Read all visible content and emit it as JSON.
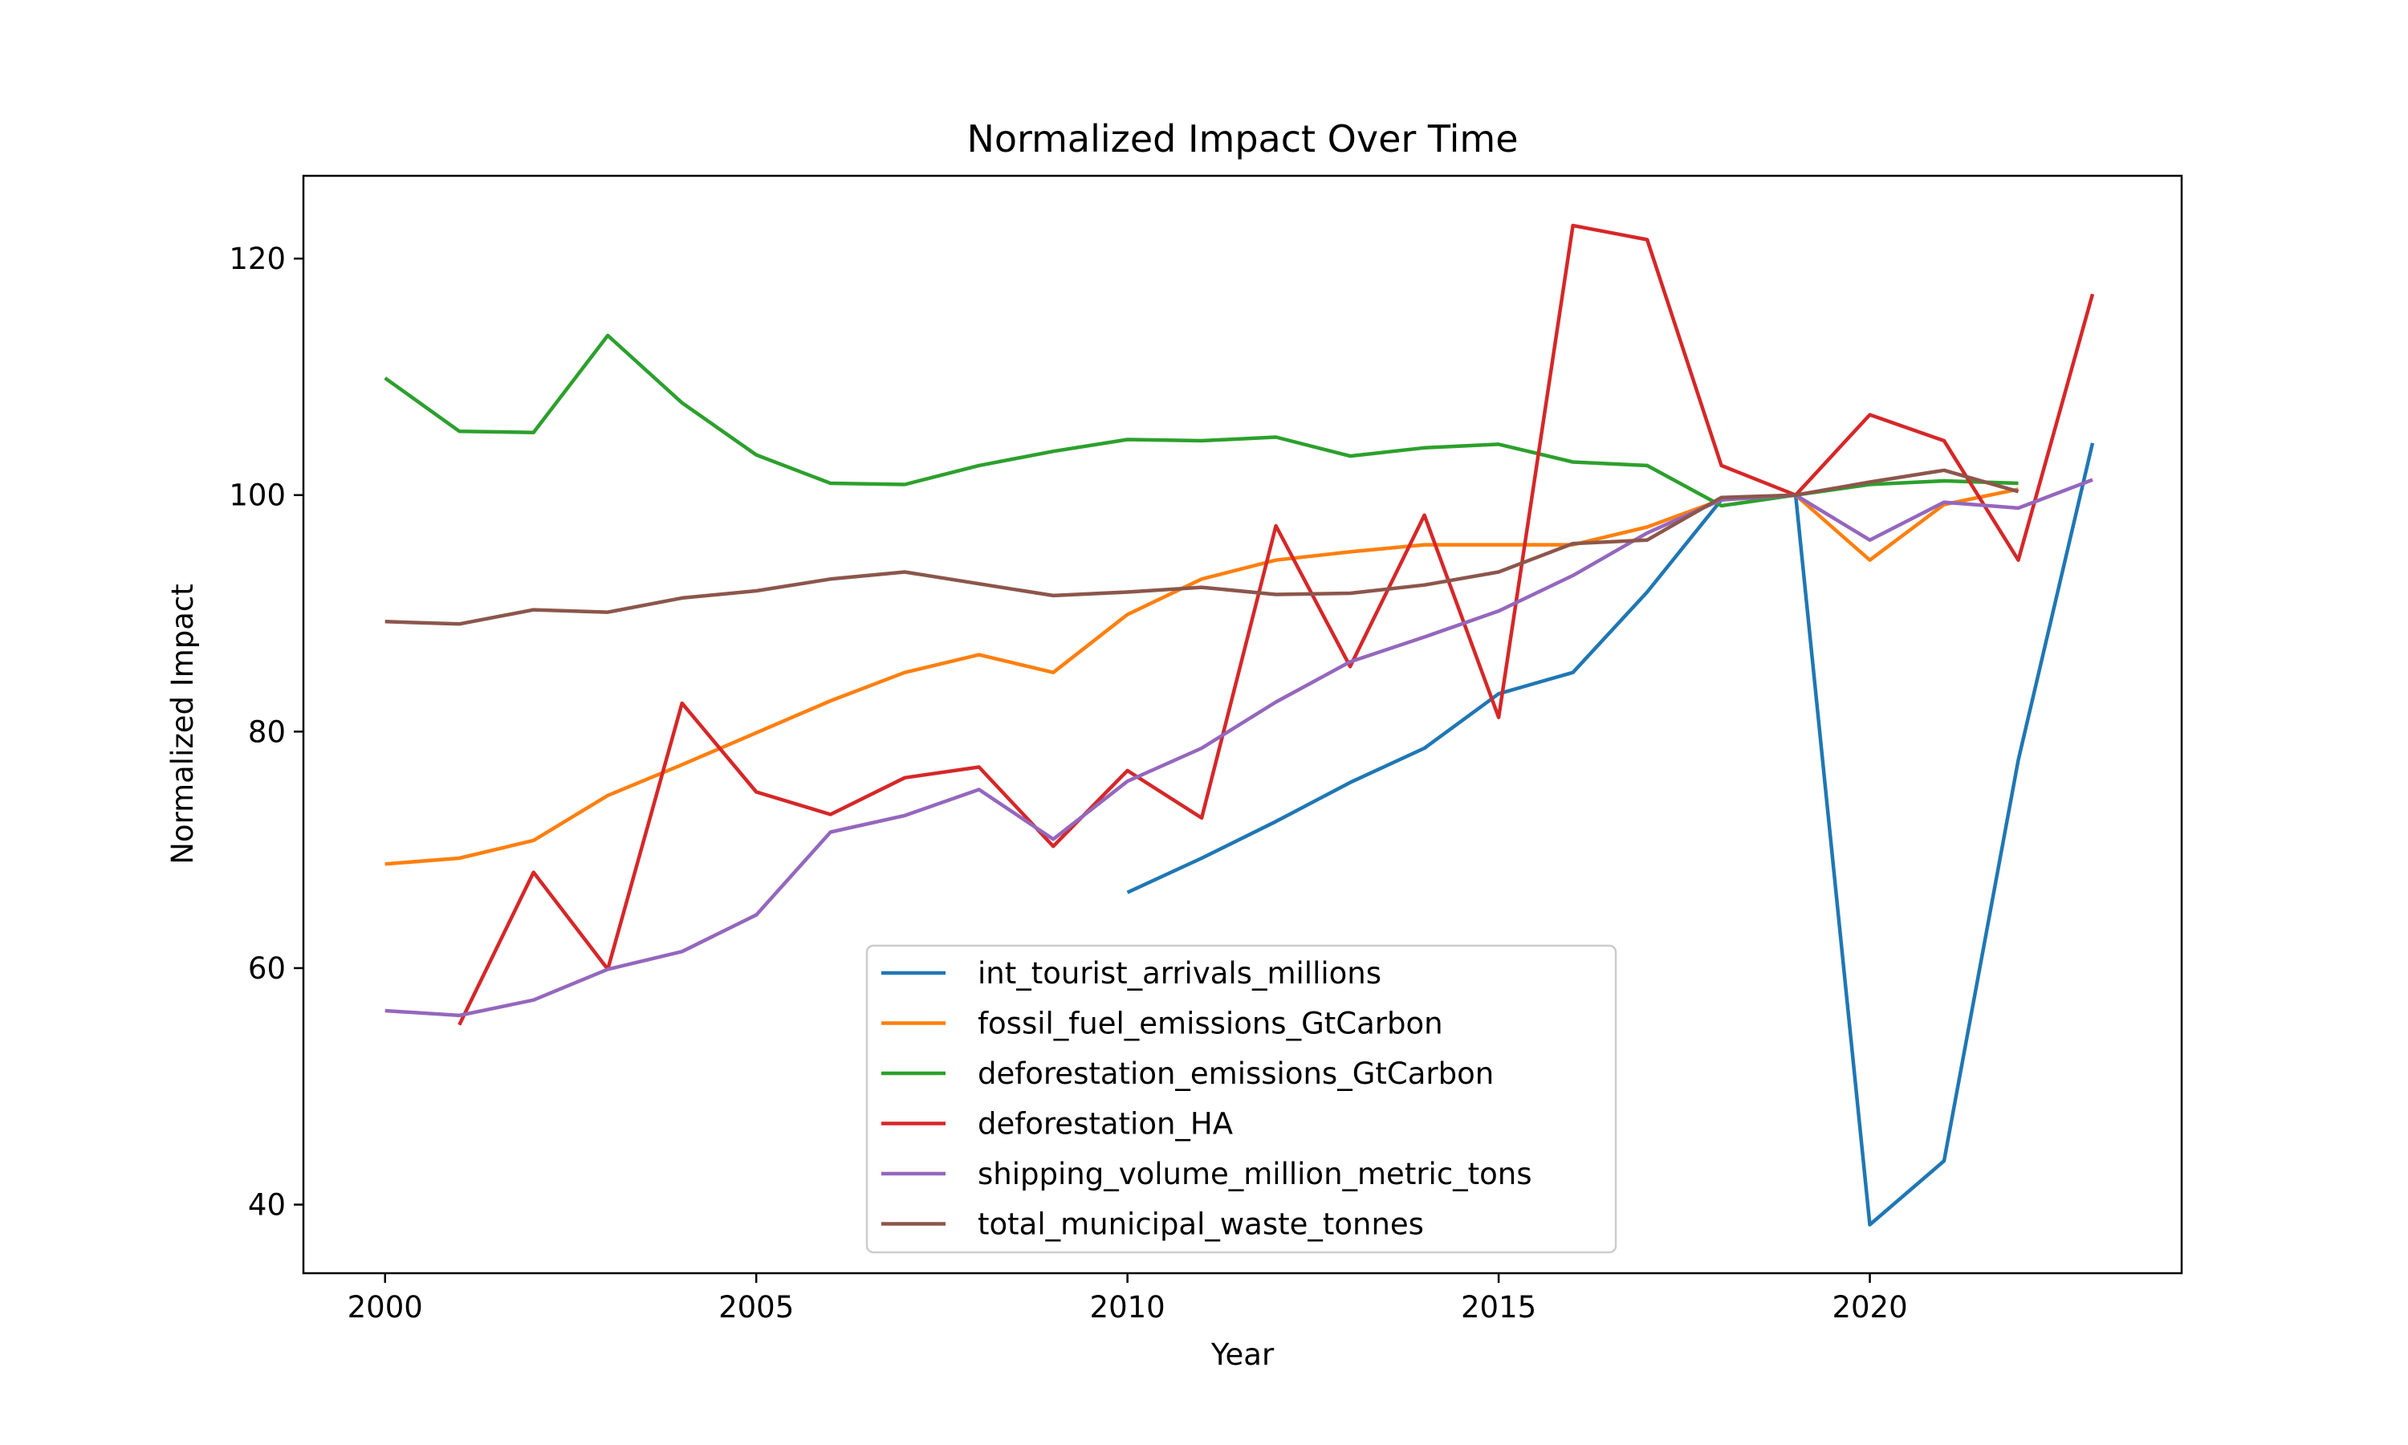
{
  "chart_data": {
    "type": "line",
    "title": "Normalized Impact Over Time",
    "xlabel": "Year",
    "ylabel": "Normalized Impact",
    "xlim": [
      1998.9,
      2024.2
    ],
    "ylim": [
      34.2,
      127.0
    ],
    "xticks": [
      2000,
      2005,
      2010,
      2015,
      2020
    ],
    "yticks": [
      40,
      60,
      80,
      100,
      120
    ],
    "grid": false,
    "legend_position": "lower center",
    "series": [
      {
        "name": "int_tourist_arrivals_millions",
        "color": "#1f77b4",
        "points": [
          [
            2010,
            66.4
          ],
          [
            2011,
            69.3
          ],
          [
            2012,
            72.4
          ],
          [
            2013,
            75.7
          ],
          [
            2014,
            78.6
          ],
          [
            2015,
            83.2
          ],
          [
            2016,
            85.0
          ],
          [
            2017,
            91.8
          ],
          [
            2018,
            99.6
          ],
          [
            2019,
            100.0
          ],
          [
            2020,
            38.3
          ],
          [
            2021,
            43.7
          ],
          [
            2022,
            77.6
          ],
          [
            2023,
            104.4
          ]
        ]
      },
      {
        "name": "fossil_fuel_emissions_GtCarbon",
        "color": "#ff7f0e",
        "points": [
          [
            2000,
            68.8
          ],
          [
            2001,
            69.3
          ],
          [
            2002,
            70.8
          ],
          [
            2003,
            74.6
          ],
          [
            2004,
            77.2
          ],
          [
            2005,
            79.9
          ],
          [
            2006,
            82.6
          ],
          [
            2007,
            85.0
          ],
          [
            2008,
            86.5
          ],
          [
            2009,
            85.0
          ],
          [
            2010,
            89.9
          ],
          [
            2011,
            92.9
          ],
          [
            2012,
            94.5
          ],
          [
            2013,
            95.2
          ],
          [
            2014,
            95.8
          ],
          [
            2015,
            95.8
          ],
          [
            2016,
            95.8
          ],
          [
            2017,
            97.3
          ],
          [
            2018,
            99.6
          ],
          [
            2019,
            100.0
          ],
          [
            2020,
            94.5
          ],
          [
            2021,
            99.2
          ],
          [
            2022,
            100.5
          ]
        ]
      },
      {
        "name": "deforestation_emissions_GtCarbon",
        "color": "#2ca02c",
        "points": [
          [
            2000,
            109.9
          ],
          [
            2001,
            105.4
          ],
          [
            2002,
            105.3
          ],
          [
            2003,
            113.5
          ],
          [
            2004,
            107.8
          ],
          [
            2005,
            103.4
          ],
          [
            2006,
            101.0
          ],
          [
            2007,
            100.9
          ],
          [
            2008,
            102.5
          ],
          [
            2009,
            103.7
          ],
          [
            2010,
            104.7
          ],
          [
            2011,
            104.6
          ],
          [
            2012,
            104.9
          ],
          [
            2013,
            103.3
          ],
          [
            2014,
            104.0
          ],
          [
            2015,
            104.3
          ],
          [
            2016,
            102.8
          ],
          [
            2017,
            102.5
          ],
          [
            2018,
            99.1
          ],
          [
            2019,
            100.0
          ],
          [
            2020,
            100.9
          ],
          [
            2021,
            101.2
          ],
          [
            2022,
            101.0
          ]
        ]
      },
      {
        "name": "deforestation_HA",
        "color": "#d62728",
        "points": [
          [
            2001,
            55.2
          ],
          [
            2002,
            68.1
          ],
          [
            2003,
            59.9
          ],
          [
            2004,
            82.4
          ],
          [
            2005,
            74.9
          ],
          [
            2006,
            73.0
          ],
          [
            2007,
            76.1
          ],
          [
            2008,
            77.0
          ],
          [
            2009,
            70.3
          ],
          [
            2010,
            76.7
          ],
          [
            2011,
            72.7
          ],
          [
            2012,
            97.4
          ],
          [
            2013,
            85.5
          ],
          [
            2014,
            98.3
          ],
          [
            2015,
            81.2
          ],
          [
            2016,
            122.8
          ],
          [
            2017,
            121.6
          ],
          [
            2018,
            102.5
          ],
          [
            2019,
            100.0
          ],
          [
            2020,
            106.8
          ],
          [
            2021,
            104.6
          ],
          [
            2022,
            94.5
          ],
          [
            2023,
            117.0
          ]
        ]
      },
      {
        "name": "shipping_volume_million_metric_tons",
        "color": "#9467bd",
        "points": [
          [
            2000,
            56.4
          ],
          [
            2001,
            56.0
          ],
          [
            2002,
            57.3
          ],
          [
            2003,
            59.9
          ],
          [
            2004,
            61.4
          ],
          [
            2005,
            64.5
          ],
          [
            2006,
            71.5
          ],
          [
            2007,
            72.9
          ],
          [
            2008,
            75.1
          ],
          [
            2009,
            70.9
          ],
          [
            2010,
            75.8
          ],
          [
            2011,
            78.6
          ],
          [
            2012,
            82.5
          ],
          [
            2013,
            85.9
          ],
          [
            2014,
            88.0
          ],
          [
            2015,
            90.2
          ],
          [
            2016,
            93.2
          ],
          [
            2017,
            96.8
          ],
          [
            2018,
            99.6
          ],
          [
            2019,
            100.0
          ],
          [
            2020,
            96.2
          ],
          [
            2021,
            99.4
          ],
          [
            2022,
            98.9
          ],
          [
            2023,
            101.3
          ]
        ]
      },
      {
        "name": "total_municipal_waste_tonnes",
        "color": "#8c564b",
        "points": [
          [
            2000,
            89.3
          ],
          [
            2001,
            89.1
          ],
          [
            2002,
            90.3
          ],
          [
            2003,
            90.1
          ],
          [
            2004,
            91.3
          ],
          [
            2005,
            91.9
          ],
          [
            2006,
            92.9
          ],
          [
            2007,
            93.5
          ],
          [
            2008,
            92.5
          ],
          [
            2009,
            91.5
          ],
          [
            2010,
            91.8
          ],
          [
            2011,
            92.2
          ],
          [
            2012,
            91.6
          ],
          [
            2013,
            91.7
          ],
          [
            2014,
            92.4
          ],
          [
            2015,
            93.5
          ],
          [
            2016,
            95.9
          ],
          [
            2017,
            96.2
          ],
          [
            2018,
            99.8
          ],
          [
            2019,
            100.0
          ],
          [
            2020,
            101.1
          ],
          [
            2021,
            102.1
          ],
          [
            2022,
            100.3
          ]
        ]
      }
    ]
  }
}
